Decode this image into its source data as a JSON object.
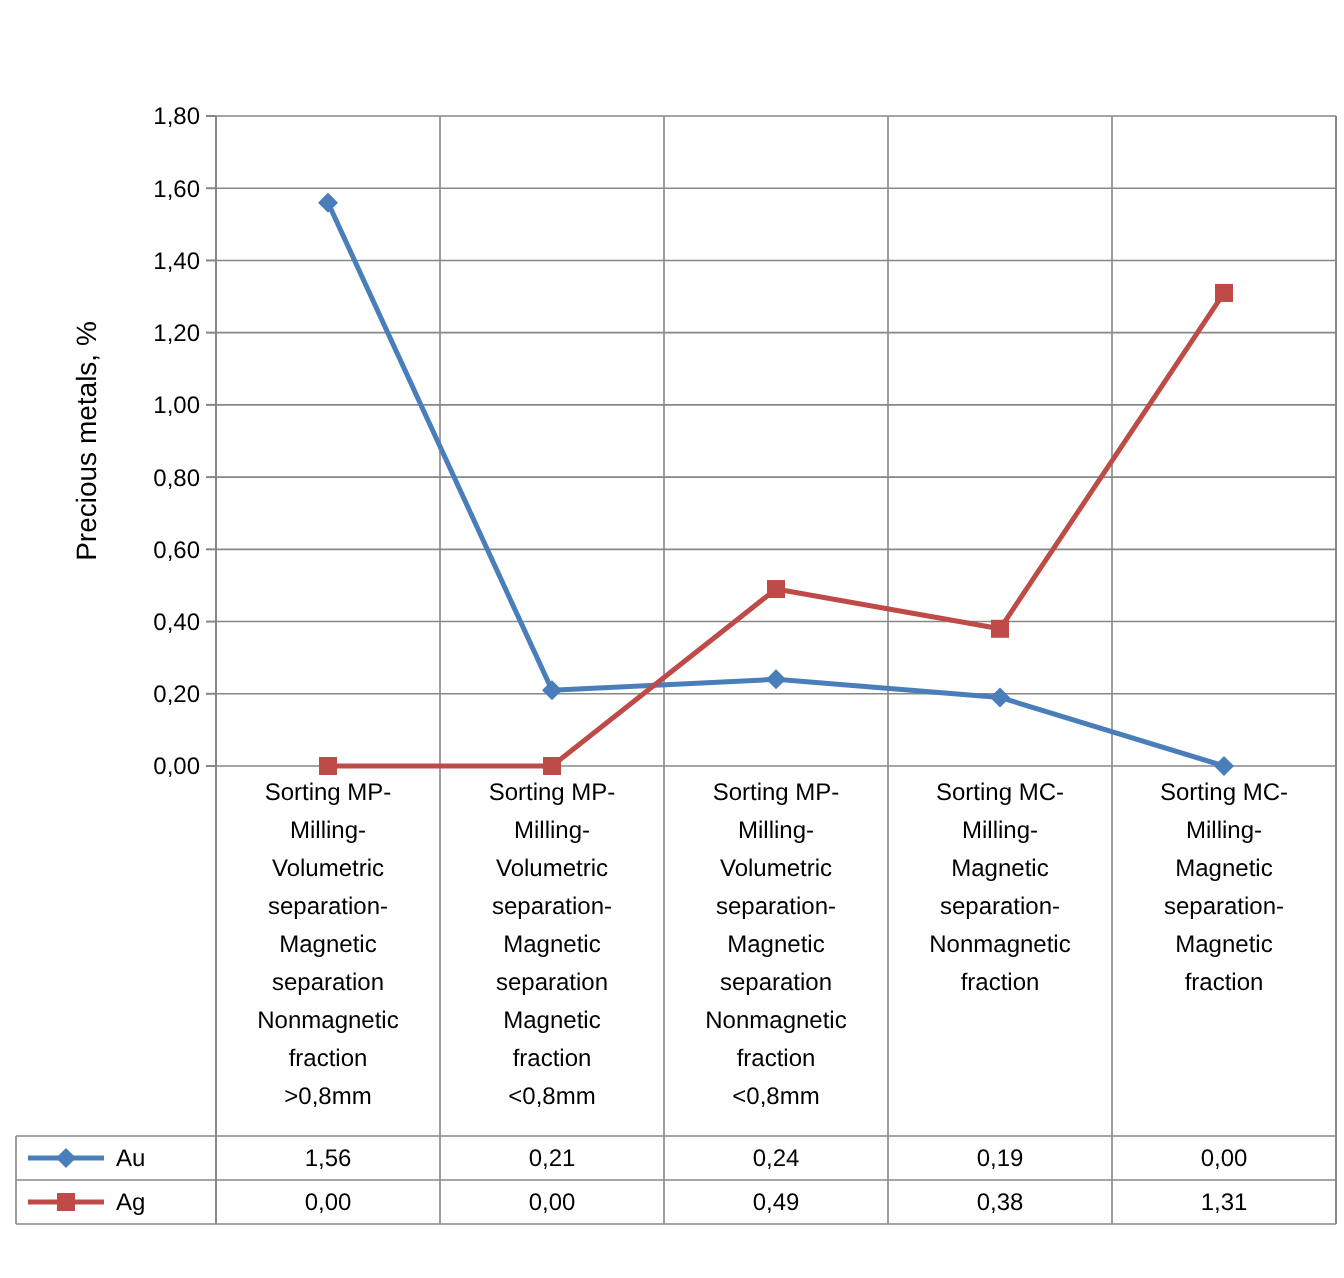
{
  "chart_data": {
    "type": "line",
    "ylabel": "Precious metals, %",
    "categories": [
      "Sorting MP-Milling-Volumetric separation-Magnetic separation Nonmagnetic fraction >0,8mm",
      "Sorting MP-Milling-Volumetric separation-Magnetic separation Magnetic fraction <0,8mm",
      "Sorting MP-Milling-Volumetric separation-Magnetic separation Nonmagnetic fraction <0,8mm",
      "Sorting MC-Milling-Magnetic separation-Nonmagnetic fraction",
      "Sorting MC-Milling-Magnetic separation-Magnetic fraction"
    ],
    "series": [
      {
        "name": "Au",
        "color": "#4a7ebb",
        "marker": "diamond",
        "values": [
          1.56,
          0.21,
          0.24,
          0.19,
          0.0
        ],
        "value_labels": [
          "1,56",
          "0,21",
          "0,24",
          "0,19",
          "0,00"
        ]
      },
      {
        "name": "Ag",
        "color": "#be4b48",
        "marker": "square",
        "values": [
          0.0,
          0.0,
          0.49,
          0.38,
          1.31
        ],
        "value_labels": [
          "0,00",
          "0,00",
          "0,49",
          "0,38",
          "1,31"
        ]
      }
    ],
    "ylim": [
      0,
      1.8
    ],
    "yticks": [
      {
        "value": 0,
        "label": "0,00"
      },
      {
        "value": 0.2,
        "label": "0,20"
      },
      {
        "value": 0.4,
        "label": "0,40"
      },
      {
        "value": 0.6,
        "label": "0,60"
      },
      {
        "value": 0.8,
        "label": "0,80"
      },
      {
        "value": 1.0,
        "label": "1,00"
      },
      {
        "value": 1.2,
        "label": "1,20"
      },
      {
        "value": 1.4,
        "label": "1,40"
      },
      {
        "value": 1.6,
        "label": "1,60"
      },
      {
        "value": 1.8,
        "label": "1,80"
      }
    ],
    "grid": "y",
    "legend": "bottom",
    "line_style": "solid"
  }
}
